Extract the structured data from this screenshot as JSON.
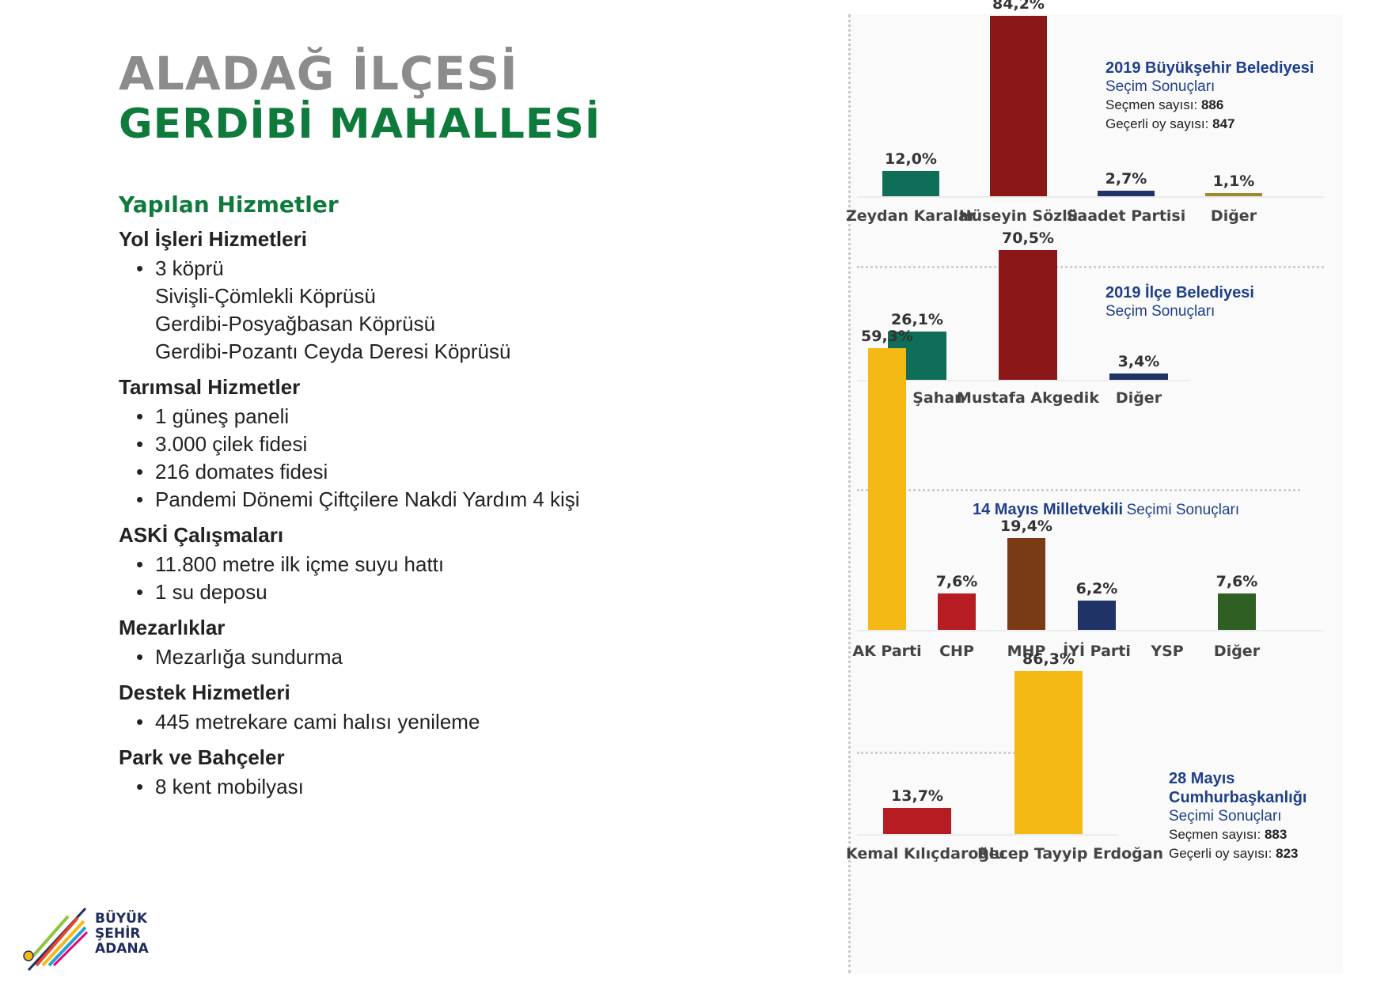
{
  "header": {
    "title_line1": "ALADAĞ İLÇESİ",
    "title_line2": "GERDİBİ MAHALLESİ"
  },
  "services": {
    "heading": "Yapılan Hizmetler",
    "categories": [
      {
        "title": "Yol İşleri Hizmetleri",
        "items": [
          {
            "text": "3 köprü",
            "bullet": true
          },
          {
            "text": "Sivişli-Çömlekli Köprüsü",
            "bullet": false
          },
          {
            "text": "Gerdibi-Posyağbasan Köprüsü",
            "bullet": false
          },
          {
            "text": "Gerdibi-Pozantı Ceyda Deresi Köprüsü",
            "bullet": false
          }
        ]
      },
      {
        "title": "Tarımsal Hizmetler",
        "items": [
          {
            "text": "1 güneş paneli",
            "bullet": true
          },
          {
            "text": "3.000 çilek fidesi",
            "bullet": true
          },
          {
            "text": "216 domates fidesi",
            "bullet": true
          },
          {
            "text": "Pandemi Dönemi Çiftçilere Nakdi Yardım 4 kişi",
            "bullet": true
          }
        ]
      },
      {
        "title": "ASKİ Çalışmaları",
        "items": [
          {
            "text": "11.800 metre ilk içme suyu hattı",
            "bullet": true
          },
          {
            "text": "1 su deposu",
            "bullet": true
          }
        ]
      },
      {
        "title": "Mezarlıklar",
        "items": [
          {
            "text": "Mezarlığa sundurma",
            "bullet": true
          }
        ]
      },
      {
        "title": "Destek Hizmetleri",
        "items": [
          {
            "text": "445 metrekare cami halısı yenileme",
            "bullet": true
          }
        ]
      },
      {
        "title": "Park ve Bahçeler",
        "items": [
          {
            "text": "8 kent mobilyası",
            "bullet": true
          }
        ]
      }
    ]
  },
  "logo": {
    "line1": "BÜYÜK",
    "line2": "ŞEHİR",
    "line3": "ADANA"
  },
  "chart_data": [
    {
      "type": "bar",
      "title_bold": "2019 Büyükşehir Belediyesi",
      "title_rest": "Seçim Sonuçları",
      "voters_label": "Seçmen sayısı:",
      "voters": "886",
      "valid_label": "Geçerli oy sayısı:",
      "valid": "847",
      "categories": [
        "Zeydan Karalar",
        "Hüseyin Sözlü",
        "Saadet Partisi",
        "Diğer"
      ],
      "values": [
        12.0,
        84.2,
        2.7,
        1.1
      ],
      "labels": [
        "12,0%",
        "84,2%",
        "2,7%",
        "1,1%"
      ],
      "colors": [
        "#0f6e58",
        "#8c1719",
        "#1f3366",
        "#a08a2e"
      ],
      "ylim": [
        0,
        100
      ]
    },
    {
      "type": "bar",
      "title_bold": "2019 İlçe Belediyesi",
      "title_rest": "Seçim Sonuçları",
      "categories": [
        "Halil Şahan",
        "Mustafa Akgedik",
        "Diğer"
      ],
      "values": [
        26.1,
        70.5,
        3.4
      ],
      "labels": [
        "26,1%",
        "70,5%",
        "3,4%"
      ],
      "colors": [
        "#0f6e58",
        "#8c1719",
        "#1f3366"
      ],
      "ylim": [
        0,
        100
      ]
    },
    {
      "type": "bar",
      "title_bold": "14 Mayıs Milletvekili",
      "title_rest": "Seçimi Sonuçları",
      "categories": [
        "AK Parti",
        "CHP",
        "MHP",
        "İYİ Parti",
        "YSP",
        "Diğer"
      ],
      "values": [
        59.3,
        7.6,
        19.4,
        6.2,
        0,
        7.6
      ],
      "labels": [
        "59,3%",
        "7,6%",
        "19,4%",
        "6,2%",
        "",
        "7,6%"
      ],
      "colors": [
        "#f4b914",
        "#b71c22",
        "#7a3a16",
        "#1f3366",
        "#7b3f98",
        "#2f5f23"
      ],
      "ylim": [
        0,
        100
      ]
    },
    {
      "type": "bar",
      "title_bold": "28 Mayıs Cumhurbaşkanlığı",
      "title_rest": "Seçimi Sonuçları",
      "voters_label": "Seçmen sayısı:",
      "voters": "883",
      "valid_label": "Geçerli oy sayısı:",
      "valid": "823",
      "categories": [
        "Kemal Kılıçdaroğlu",
        "Recep Tayyip Erdoğan"
      ],
      "values": [
        13.7,
        86.3
      ],
      "labels": [
        "13,7%",
        "86,3%"
      ],
      "colors": [
        "#b71c22",
        "#f4b914"
      ],
      "ylim": [
        0,
        100
      ]
    }
  ]
}
